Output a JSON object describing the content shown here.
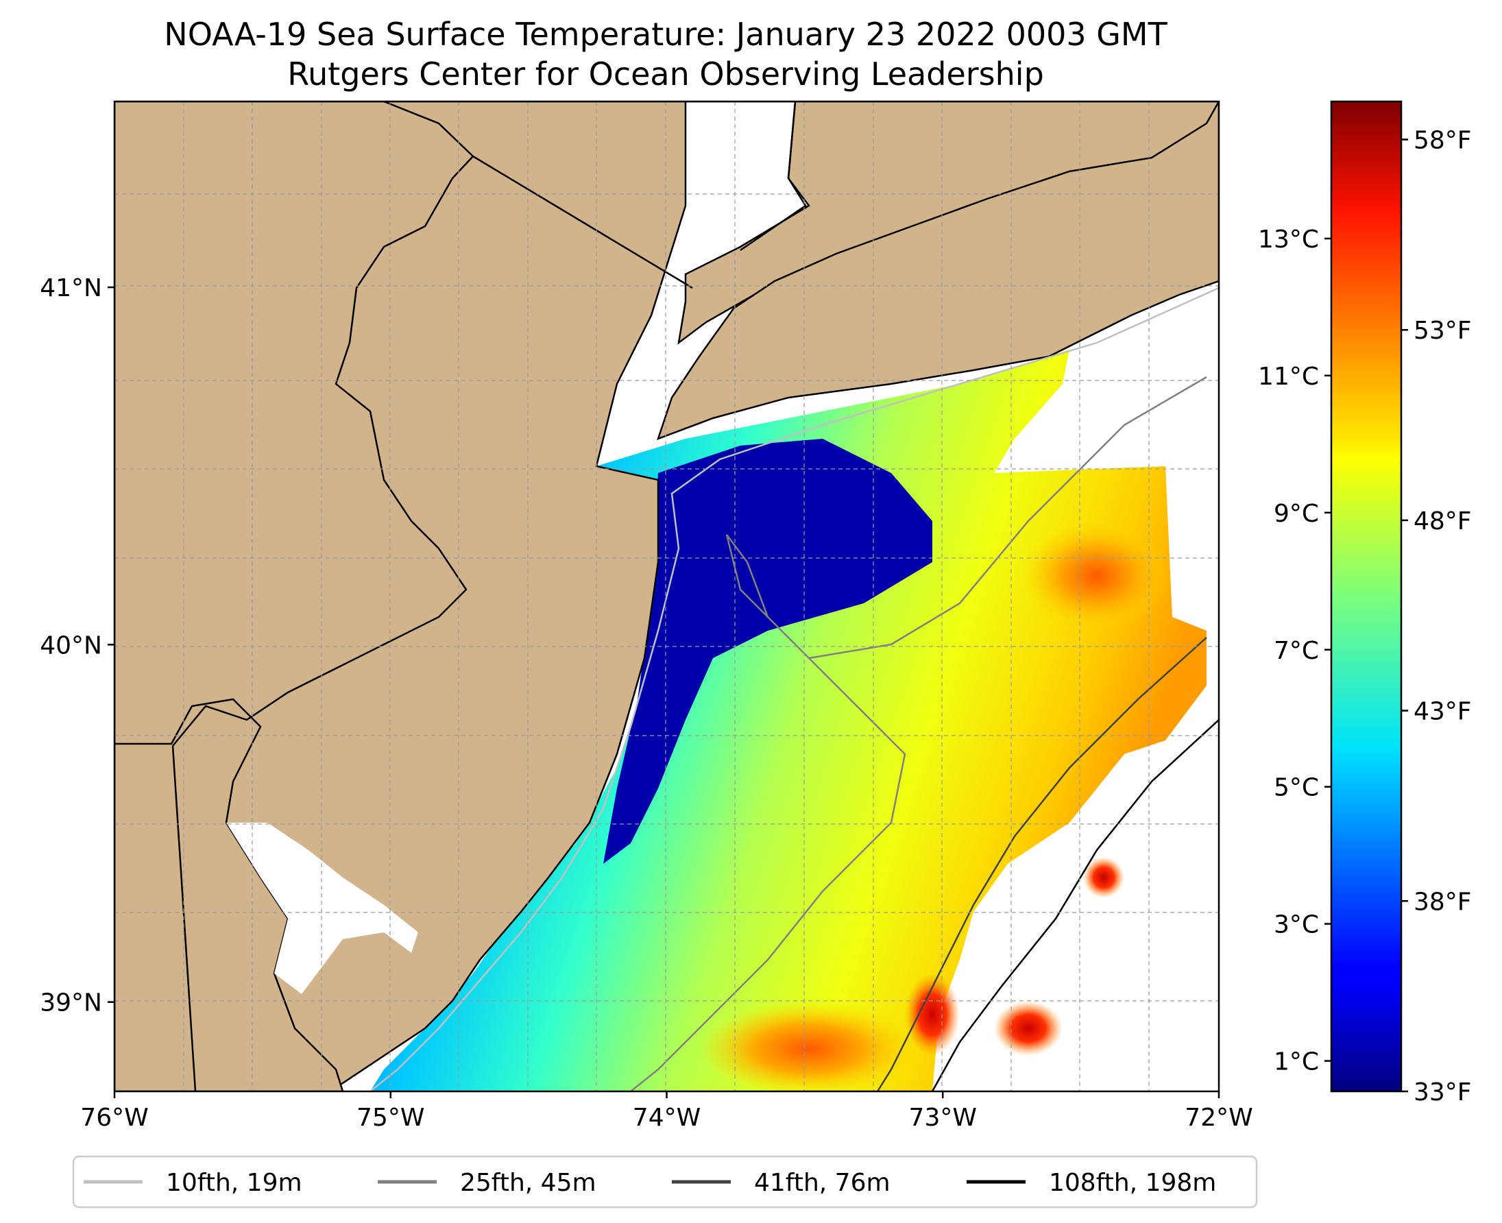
{
  "figure": {
    "title_line1": "NOAA-19 Sea Surface Temperature: January 23 2022 0003 GMT",
    "title_line2": "Rutgers Center for Ocean Observing Leadership"
  },
  "map": {
    "extent": {
      "lon_min": -76.0,
      "lon_max": -72.0,
      "lat_min": 38.75,
      "lat_max": 41.52
    },
    "lon_ticks": [
      {
        "value": -76,
        "label": "76°W"
      },
      {
        "value": -75,
        "label": "75°W"
      },
      {
        "value": -74,
        "label": "74°W"
      },
      {
        "value": -73,
        "label": "73°W"
      },
      {
        "value": -72,
        "label": "72°W"
      }
    ],
    "lat_ticks": [
      {
        "value": 41,
        "label": "41°N"
      },
      {
        "value": 40,
        "label": "40°N"
      },
      {
        "value": 39,
        "label": "39°N"
      }
    ],
    "land_color": "#d2b48c",
    "nodata_color": "#ffffff"
  },
  "colorbar": {
    "colormap": "jet",
    "range_f": [
      33,
      59
    ],
    "fahrenheit_ticks": [
      {
        "value": 33,
        "label": "33°F"
      },
      {
        "value": 38,
        "label": "38°F"
      },
      {
        "value": 43,
        "label": "43°F"
      },
      {
        "value": 48,
        "label": "48°F"
      },
      {
        "value": 53,
        "label": "53°F"
      },
      {
        "value": 58,
        "label": "58°F"
      }
    ],
    "celsius_ticks": [
      {
        "value": 1,
        "label": "1°C"
      },
      {
        "value": 3,
        "label": "3°C"
      },
      {
        "value": 5,
        "label": "5°C"
      },
      {
        "value": 7,
        "label": "7°C"
      },
      {
        "value": 9,
        "label": "9°C"
      },
      {
        "value": 11,
        "label": "11°C"
      },
      {
        "value": 13,
        "label": "13°C"
      }
    ]
  },
  "legend": {
    "items": [
      {
        "label": "10fth, 19m",
        "color": "#c0c0c0"
      },
      {
        "label": "25fth, 45m",
        "color": "#808080"
      },
      {
        "label": "41fth, 76m",
        "color": "#404040"
      },
      {
        "label": "108fth, 198m",
        "color": "#000000"
      }
    ]
  }
}
